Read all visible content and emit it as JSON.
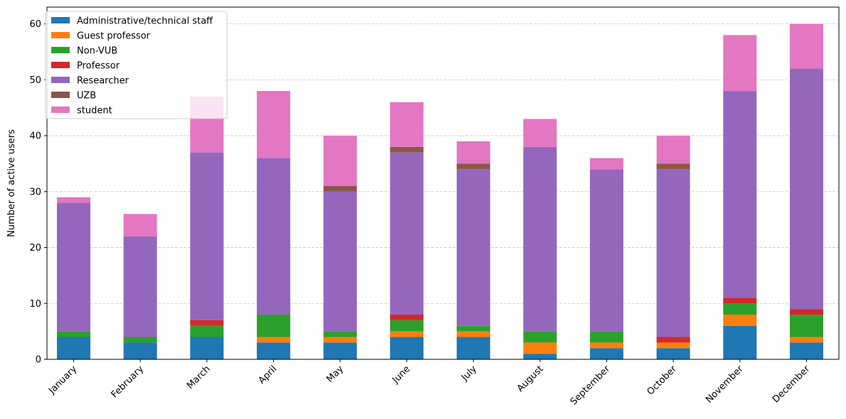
{
  "chart_data": {
    "type": "bar",
    "stacked": true,
    "categories": [
      "January",
      "February",
      "March",
      "April",
      "May",
      "June",
      "July",
      "August",
      "September",
      "October",
      "November",
      "December"
    ],
    "series": [
      {
        "name": "Administrative/technical staff",
        "color": "#1f77b4",
        "values": [
          4,
          3,
          4,
          3,
          3,
          4,
          4,
          1,
          2,
          2,
          6,
          3
        ]
      },
      {
        "name": "Guest professor",
        "color": "#ff7f0e",
        "values": [
          0,
          0,
          0,
          1,
          1,
          1,
          1,
          2,
          1,
          1,
          2,
          1
        ]
      },
      {
        "name": "Non-VUB",
        "color": "#2ca02c",
        "values": [
          1,
          1,
          2,
          4,
          1,
          2,
          1,
          2,
          2,
          0,
          2,
          4
        ]
      },
      {
        "name": "Professor",
        "color": "#d62728",
        "values": [
          0,
          0,
          1,
          0,
          0,
          1,
          0,
          0,
          0,
          1,
          1,
          1
        ]
      },
      {
        "name": "Researcher",
        "color": "#9467bd",
        "values": [
          23,
          18,
          30,
          28,
          25,
          29,
          28,
          33,
          29,
          30,
          37,
          43
        ]
      },
      {
        "name": "UZB",
        "color": "#8c564b",
        "values": [
          0,
          0,
          0,
          0,
          1,
          1,
          1,
          0,
          0,
          1,
          0,
          0
        ]
      },
      {
        "name": "student",
        "color": "#e377c2",
        "values": [
          1,
          4,
          10,
          12,
          9,
          8,
          4,
          5,
          2,
          5,
          10,
          8
        ]
      }
    ],
    "xlabel": "",
    "ylabel": "Number of active users",
    "ylim": [
      0,
      63
    ],
    "yticks": [
      "0",
      "10",
      "20",
      "30",
      "40",
      "50",
      "60"
    ],
    "grid": "horizontal dashed",
    "legend": "top-left"
  }
}
